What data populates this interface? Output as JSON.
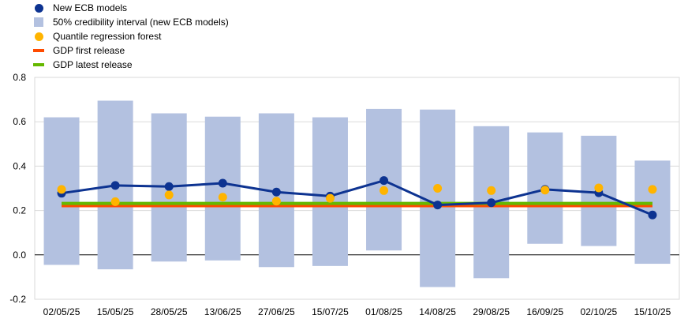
{
  "chart_data": {
    "type": "line",
    "title": "",
    "xlabel": "",
    "ylabel": "",
    "categories": [
      "02/05/25",
      "15/05/25",
      "28/05/25",
      "13/06/25",
      "27/06/25",
      "15/07/25",
      "01/08/25",
      "14/08/25",
      "29/08/25",
      "16/09/25",
      "02/10/25",
      "15/10/25"
    ],
    "ylim": [
      -0.2,
      0.8
    ],
    "yticks": [
      "-0.2",
      "0.0",
      "0.2",
      "0.4",
      "0.6",
      "0.8"
    ],
    "grid": true,
    "legend_position": "top-left",
    "series": [
      {
        "name": "New ECB models",
        "kind": "line-markers",
        "color": "#0d3391",
        "values": [
          0.278,
          0.313,
          0.308,
          0.323,
          0.283,
          0.265,
          0.335,
          0.225,
          0.235,
          0.295,
          0.28,
          0.18
        ]
      },
      {
        "name": "50% credibility interval (new ECB models)",
        "kind": "range-bar",
        "color": "#b3c1e0",
        "low": [
          -0.045,
          -0.065,
          -0.03,
          -0.025,
          -0.055,
          -0.05,
          0.02,
          -0.145,
          -0.105,
          0.05,
          0.04,
          -0.04
        ],
        "high": [
          0.62,
          0.695,
          0.638,
          0.623,
          0.638,
          0.62,
          0.658,
          0.655,
          0.58,
          0.552,
          0.537,
          0.425
        ]
      },
      {
        "name": "Quantile regression forest",
        "kind": "markers",
        "color": "#ffb400",
        "values": [
          0.295,
          0.24,
          0.27,
          0.26,
          0.242,
          0.255,
          0.29,
          0.3,
          0.29,
          0.292,
          0.302,
          0.295
        ]
      },
      {
        "name": "GDP first release",
        "kind": "hline",
        "color": "#ff4b00",
        "value": 0.22
      },
      {
        "name": "GDP latest release",
        "kind": "hline",
        "color": "#65b800",
        "value": 0.232
      }
    ]
  }
}
